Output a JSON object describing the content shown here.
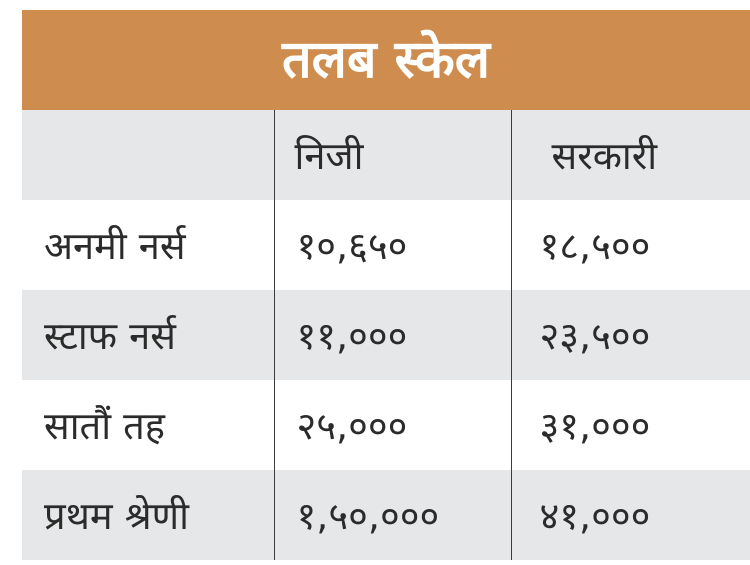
{
  "title": "तलब स्केल",
  "table": {
    "headers": [
      "",
      "निजी",
      "सरकारी"
    ],
    "rows": [
      {
        "label": "अनमी नर्स",
        "private": "१०,६५०",
        "government": "१८,५००"
      },
      {
        "label": "स्टाफ नर्स",
        "private": "११,०००",
        "government": "२३,५००"
      },
      {
        "label": "सातौं तह",
        "private": "२५,०००",
        "government": "३१,०००"
      },
      {
        "label": "प्रथम श्रेणी",
        "private": "१,५०,०००",
        "government": "४१,०००"
      }
    ]
  },
  "colors": {
    "title_bg": "#cf8c4f",
    "title_text": "#ffffff",
    "row_shade": "#e6e7e8",
    "text": "#2b2b2b"
  }
}
